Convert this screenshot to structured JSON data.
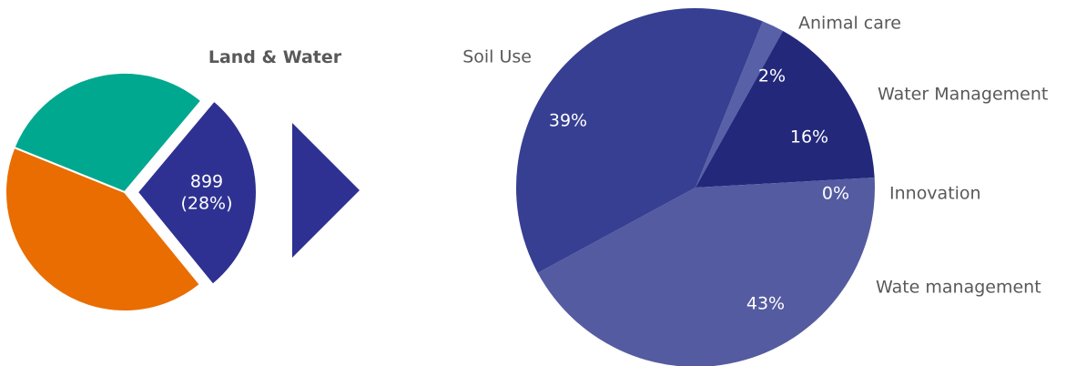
{
  "chart_data": [
    {
      "type": "pie",
      "title": "",
      "selected_slice": {
        "name": "Land & Water",
        "value": 899,
        "percent_label": "(28%)"
      },
      "slices": [
        {
          "name": "Land & Water",
          "percent": 28,
          "color": "#2E3192",
          "label_value": "899",
          "label_percent": "(28%)",
          "exploded": true
        },
        {
          "name": "",
          "percent": 42,
          "color": "#E96D00",
          "exploded": false
        },
        {
          "name": "",
          "percent": 30,
          "color": "#00A88F",
          "exploded": false
        }
      ]
    },
    {
      "type": "pie",
      "title": "",
      "slices": [
        {
          "name": "Animal care",
          "percent": 2,
          "label": "2%",
          "color": "#5860A8"
        },
        {
          "name": "Water Management",
          "percent": 16,
          "label": "16%",
          "color": "#23287B"
        },
        {
          "name": "Innovation",
          "percent": 0,
          "label": "0%",
          "color": "#2E3192"
        },
        {
          "name": "Wate management",
          "percent": 43,
          "label": "43%",
          "color": "#545BA0"
        },
        {
          "name": "Soil Use",
          "percent": 39,
          "label": "39%",
          "color": "#373F92"
        }
      ]
    }
  ],
  "connector": {
    "color": "#2E3192"
  }
}
